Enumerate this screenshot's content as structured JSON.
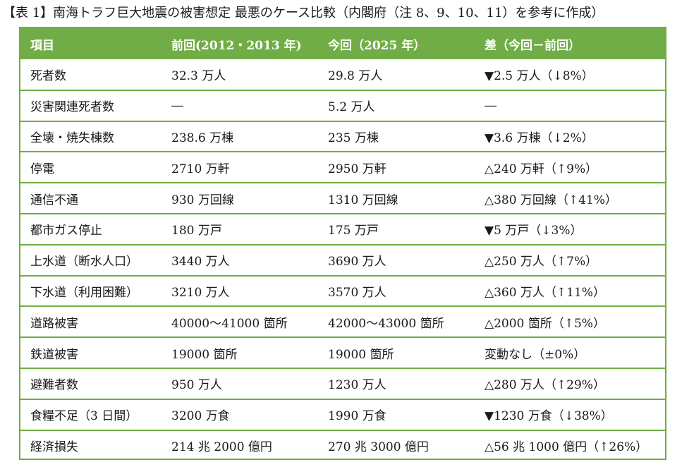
{
  "caption": "【表 1】南海トラフ巨大地震の被害想定 最悪のケース比較（内閣府（注 8、9、10、11）を参考に作成）",
  "table": {
    "headers": [
      "項目",
      "前回(2012・2013 年)",
      "今回（2025 年）",
      "差（今回－前回）"
    ],
    "rows": [
      [
        "死者数",
        "32.3 万人",
        "29.8 万人",
        "▼2.5 万人（↓8%）"
      ],
      [
        "災害関連死者数",
        "―",
        "5.2 万人",
        "―"
      ],
      [
        "全壊・焼失棟数",
        "238.6 万棟",
        "235 万棟",
        "▼3.6 万棟（↓2%）"
      ],
      [
        "停電",
        "2710 万軒",
        "2950 万軒",
        "△240 万軒（↑9%）"
      ],
      [
        "通信不通",
        "930 万回線",
        "1310 万回線",
        "△380 万回線（↑41%）"
      ],
      [
        "都市ガス停止",
        "180 万戸",
        "175 万戸",
        "▼5 万戸（↓3%）"
      ],
      [
        "上水道（断水人口）",
        "3440 万人",
        "3690 万人",
        "△250 万人（↑7%）"
      ],
      [
        "下水道（利用困難）",
        "3210 万人",
        "3570 万人",
        "△360 万人（↑11%）"
      ],
      [
        "道路被害",
        "40000～41000 箇所",
        "42000～43000 箇所",
        "△2000 箇所（↑5%）"
      ],
      [
        "鉄道被害",
        "19000 箇所",
        "19000 箇所",
        "変動なし（±0%）"
      ],
      [
        "避難者数",
        "950 万人",
        "1230 万人",
        "△280 万人（↑29%）"
      ],
      [
        "食糧不足（3 日間）",
        "3200 万食",
        "1990 万食",
        "▼1230 万食（↓38%）"
      ],
      [
        "経済損失",
        "214 兆 2000 億円",
        "270 兆 3000 億円",
        "△56 兆 1000 億円（↑26%）"
      ]
    ]
  },
  "colors": {
    "header_bg": "#70ad47",
    "header_text": "#ffffff",
    "border": "#70ad47",
    "body_text": "#1a1a1a"
  }
}
